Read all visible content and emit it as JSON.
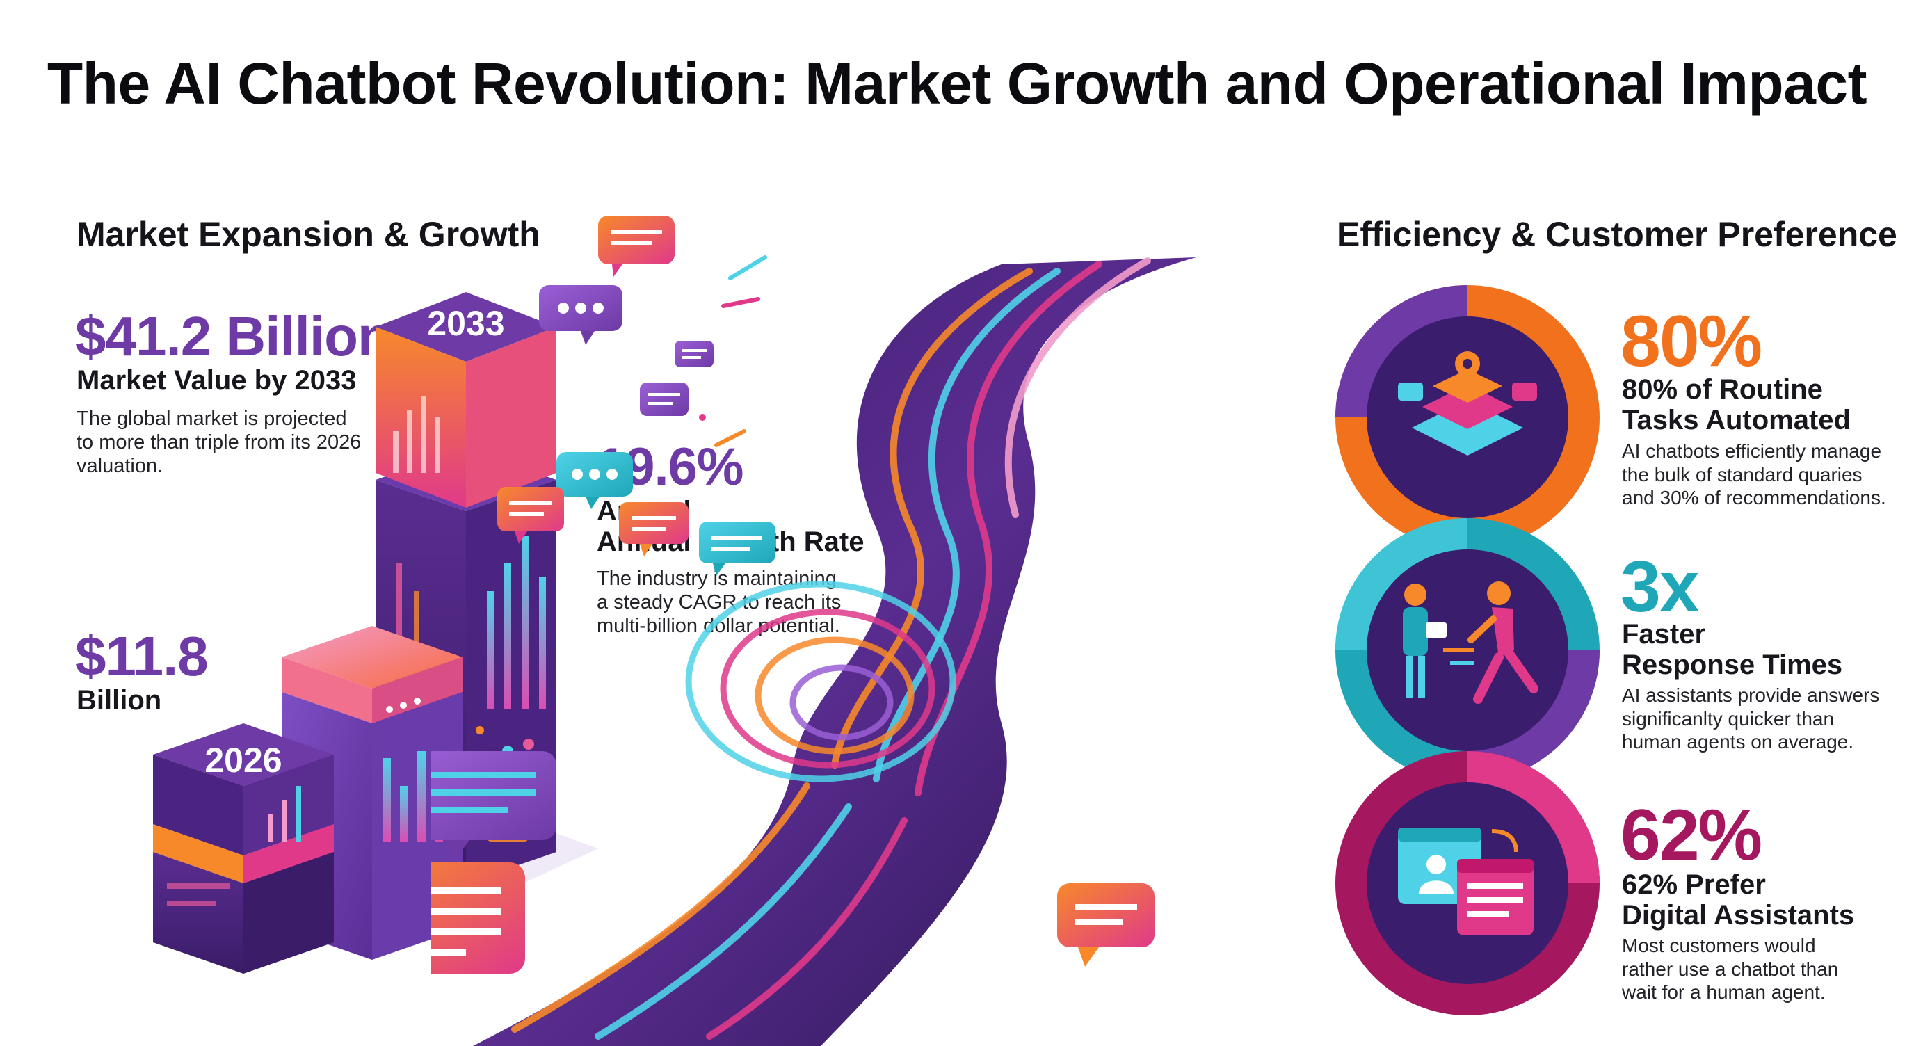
{
  "title": "The AI Chatbot Revolution: Market Growth and Operational Impact",
  "left": {
    "heading": "Market Expansion & Growth",
    "value_2033": "$41.2 Billion",
    "value_2033_label": "Market Value by 2033",
    "value_2033_desc": [
      "The global market is projected",
      "to more than triple from its 2026",
      "valuation."
    ],
    "value_2026": "$11.8",
    "value_2026_unit": "Billion",
    "cagr": "19.6%",
    "cagr_label": [
      "Annual",
      "Annual Growth Rate"
    ],
    "cagr_desc": [
      "The industry is maintaining",
      "a steady CAGR to reach its",
      "multi-billion dollar potential."
    ],
    "year_2033": "2033",
    "year_2026": "2026"
  },
  "right": {
    "heading": "Efficiency & Customer Preference",
    "items": [
      {
        "stat": "80%",
        "title": [
          "80% of Routine",
          "Tasks Automated"
        ],
        "desc": [
          "AI chatbots efficiently manage",
          "the bulk of standard quaries",
          "and 30% of recommendations."
        ],
        "color": "#f2711c"
      },
      {
        "stat": "3x",
        "title": [
          "Faster",
          "Response Times"
        ],
        "desc": [
          "AI assistants provide answers",
          "significanlty quicker than",
          "human agents on average."
        ],
        "color": "#1fa7b8"
      },
      {
        "stat": "62%",
        "title": [
          "62% Prefer",
          "Digital Assistants"
        ],
        "desc": [
          "Most customers would",
          "rather use a chatbot than",
          "wait for a human agent."
        ],
        "color": "#a5175f"
      }
    ]
  },
  "colors": {
    "purple": "#6d3aa6",
    "orange": "#f2711c",
    "teal": "#1fa7b8",
    "magenta": "#c2186b",
    "dark_purple": "#3b1d6e"
  }
}
